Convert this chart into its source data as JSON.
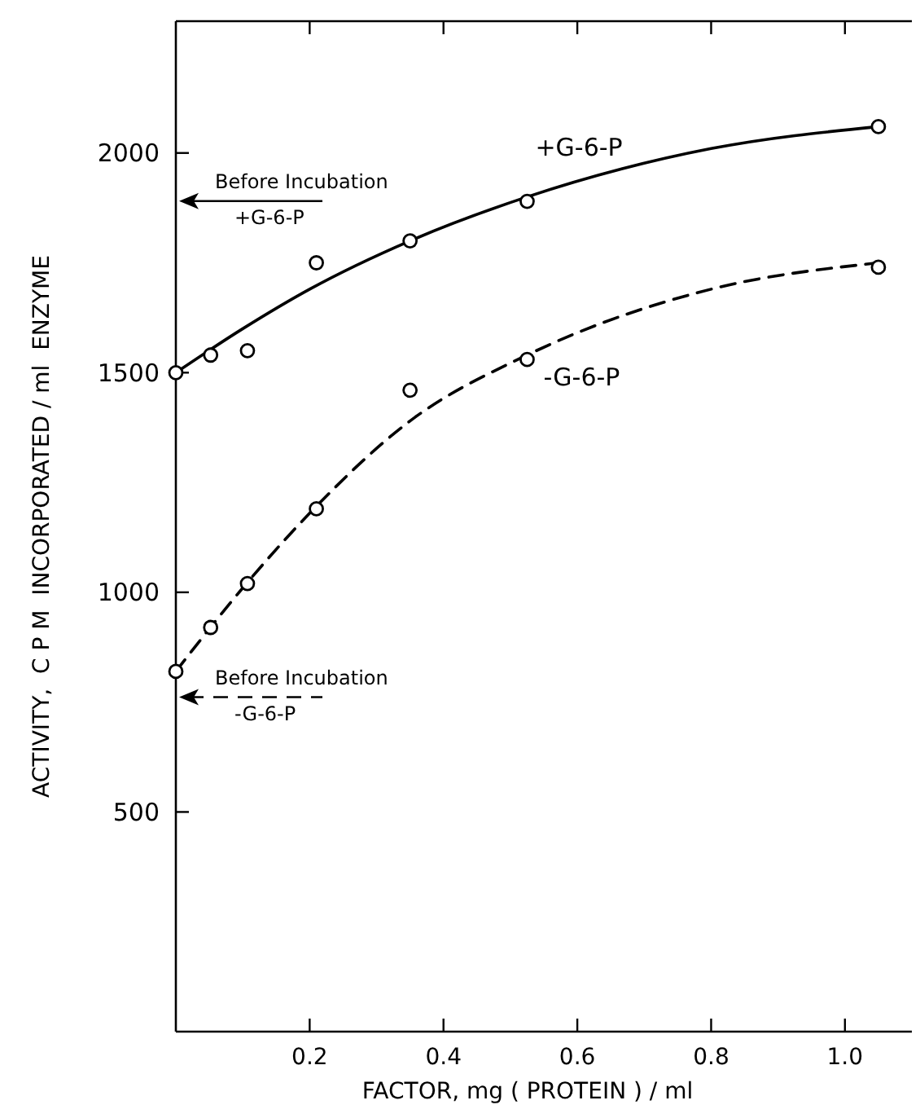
{
  "chart_data": {
    "type": "scatter",
    "xlabel": "FACTOR, mg ( PROTEIN ) / ml",
    "ylabel": "ACTIVITY,  C P M  INCORPORATED / ml  ENZYME",
    "xlim": [
      0,
      1.1
    ],
    "ylim": [
      0,
      2300
    ],
    "xticks": [
      0.2,
      0.4,
      0.6,
      0.8,
      {
        "value": 1,
        "label": "1.0"
      }
    ],
    "yticks": [
      500,
      1000,
      1500,
      2000
    ],
    "marker": "circle",
    "series": [
      {
        "name": "+G-6-P",
        "color": "#000000",
        "x": [
          0,
          0.052,
          0.107,
          0.21,
          0.35,
          0.525,
          1.05
        ],
        "values": [
          1500,
          1540,
          1550,
          1750,
          1800,
          1890,
          2060
        ]
      },
      {
        "name": "-G-6-P",
        "color": "#000000",
        "x": [
          0,
          0.052,
          0.107,
          0.21,
          0.35,
          0.525,
          1.05
        ],
        "values": [
          820,
          920,
          1020,
          1190,
          1460,
          1530,
          1740
        ]
      },
      {
        "type": "line",
        "color": "#000000",
        "line_style": "solid",
        "marker": "none",
        "x": [
          0,
          0.1,
          0.2,
          0.35,
          0.525,
          0.8,
          1.05
        ],
        "values": [
          1500,
          1600,
          1690,
          1800,
          1900,
          2010,
          2060
        ]
      },
      {
        "type": "line",
        "color": "#000000",
        "line_style": "dashed",
        "marker": "none",
        "x": [
          0,
          0.1,
          0.2,
          0.35,
          0.525,
          0.8,
          1.05
        ],
        "values": [
          820,
          1010,
          1180,
          1390,
          1540,
          1690,
          1750
        ]
      }
    ],
    "annotations": [
      "Before Incubation\n+G-6-P",
      "Before Incubation\n-G-6-P"
    ]
  }
}
